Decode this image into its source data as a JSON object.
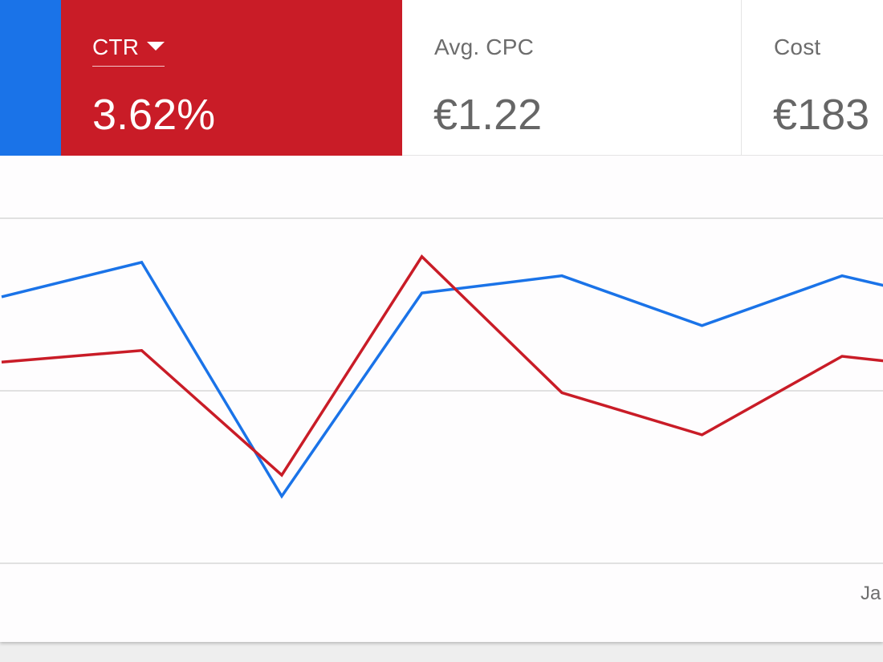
{
  "scorecards": {
    "ctr": {
      "label": "CTR",
      "value": "3.62%"
    },
    "avg_cpc": {
      "label": "Avg. CPC",
      "value": "€1.22"
    },
    "cost": {
      "label": "Cost",
      "value": "€183"
    }
  },
  "colors": {
    "clicks_series": "#1a73e8",
    "ctr_series": "#c91c27",
    "gridline": "#e1e1e1"
  },
  "chart_data": {
    "type": "line",
    "x_tick_labels": [
      "Ja"
    ],
    "y_gridlines": 3,
    "series": [
      {
        "values": [
          3.39,
          3.57,
          2.35,
          3.41,
          3.5,
          3.24,
          3.5,
          3.33
        ]
      },
      {
        "values": [
          3.05,
          3.11,
          2.46,
          3.6,
          2.89,
          2.67,
          3.08,
          3.0
        ]
      }
    ],
    "ylim": [
      2.0,
      3.8
    ]
  }
}
